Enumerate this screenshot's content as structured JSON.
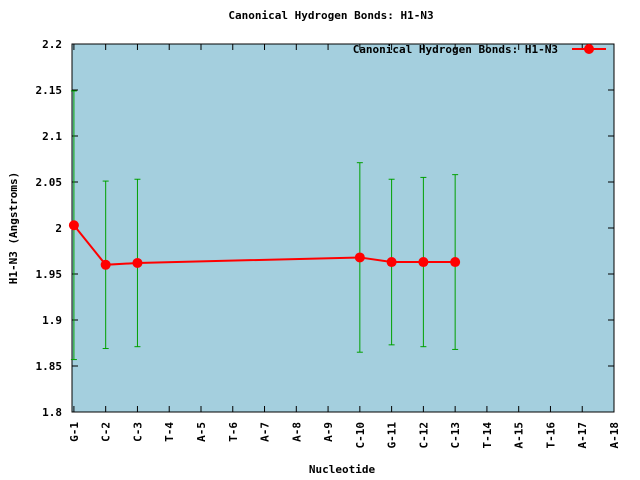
{
  "chart_data": {
    "type": "line",
    "title": "Canonical Hydrogen Bonds: H1-N3",
    "x_label": "Nucleotide",
    "y_label": "H1-N3 (Angstroms)",
    "x": [
      1,
      2,
      3,
      10,
      11,
      12,
      13
    ],
    "series": [
      {
        "name": "Canonical Hydrogen Bonds: H1-N3",
        "color": "#ff0000",
        "error_color": "#00a000",
        "values": [
          2.003,
          1.96,
          1.962,
          1.968,
          1.963,
          1.963,
          1.963
        ],
        "errors": [
          0.146,
          0.091,
          0.091,
          0.103,
          0.09,
          0.092,
          0.095
        ]
      }
    ],
    "xlim": [
      0.94,
      18
    ],
    "xticks": [
      {
        "value": 1,
        "label": "G-1"
      },
      {
        "value": 2,
        "label": "C-2"
      },
      {
        "value": 3,
        "label": "C-3"
      },
      {
        "value": 4,
        "label": "T-4"
      },
      {
        "value": 5,
        "label": "A-5"
      },
      {
        "value": 6,
        "label": "T-6"
      },
      {
        "value": 7,
        "label": "A-7"
      },
      {
        "value": 8,
        "label": "A-8"
      },
      {
        "value": 9,
        "label": "A-9"
      },
      {
        "value": 10,
        "label": "C-10"
      },
      {
        "value": 11,
        "label": "G-11"
      },
      {
        "value": 12,
        "label": "C-12"
      },
      {
        "value": 13,
        "label": "C-13"
      },
      {
        "value": 14,
        "label": "T-14"
      },
      {
        "value": 15,
        "label": "A-15"
      },
      {
        "value": 16,
        "label": "T-16"
      },
      {
        "value": 17,
        "label": "A-17"
      },
      {
        "value": 18,
        "label": "A-18"
      }
    ],
    "ylim": [
      1.8,
      2.2
    ],
    "yticks": [
      1.8,
      1.85,
      1.9,
      1.95,
      2,
      2.05,
      2.1,
      2.15,
      2.2
    ],
    "background": "#a4cfde",
    "legend": "top-right"
  }
}
